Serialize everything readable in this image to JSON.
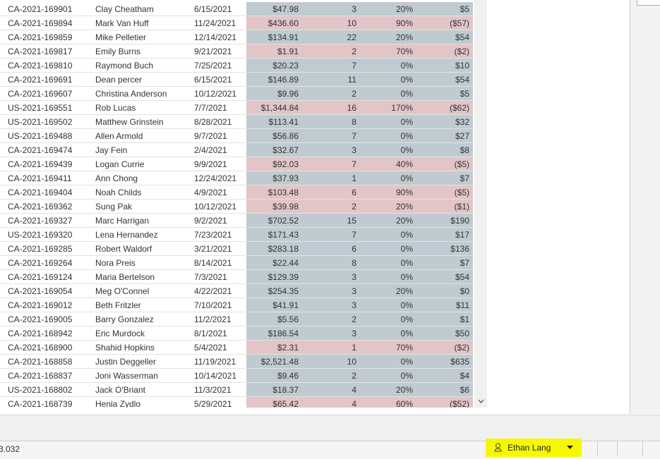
{
  "table": {
    "rows": [
      [
        "CA-2021-169901",
        "Clay Cheatham",
        "6/15/2021",
        "$47.98",
        "3",
        "20%",
        "$5"
      ],
      [
        "CA-2021-169894",
        "Mark Van Huff",
        "11/24/2021",
        "$436.60",
        "10",
        "90%",
        "($57)"
      ],
      [
        "CA-2021-169859",
        "Mike Pelletier",
        "12/14/2021",
        "$134.91",
        "22",
        "20%",
        "$54"
      ],
      [
        "CA-2021-169817",
        "Emily Burns",
        "9/21/2021",
        "$1.91",
        "2",
        "70%",
        "($2)"
      ],
      [
        "CA-2021-169810",
        "Raymond Buch",
        "7/25/2021",
        "$20.23",
        "7",
        "0%",
        "$10"
      ],
      [
        "CA-2021-169691",
        "Dean percer",
        "6/15/2021",
        "$146.89",
        "11",
        "0%",
        "$54"
      ],
      [
        "CA-2021-169607",
        "Christina Anderson",
        "10/12/2021",
        "$9.96",
        "2",
        "0%",
        "$5"
      ],
      [
        "US-2021-169551",
        "Rob Lucas",
        "7/7/2021",
        "$1,344.84",
        "16",
        "170%",
        "($62)"
      ],
      [
        "US-2021-169502",
        "Matthew Grinstein",
        "8/28/2021",
        "$113.41",
        "8",
        "0%",
        "$32"
      ],
      [
        "US-2021-169488",
        "Allen Armold",
        "9/7/2021",
        "$56.86",
        "7",
        "0%",
        "$27"
      ],
      [
        "CA-2021-169474",
        "Jay Fein",
        "2/4/2021",
        "$32.67",
        "3",
        "0%",
        "$8"
      ],
      [
        "CA-2021-169439",
        "Logan Currie",
        "9/9/2021",
        "$92.03",
        "7",
        "40%",
        "($5)"
      ],
      [
        "CA-2021-169411",
        "Ann Chong",
        "12/24/2021",
        "$37.93",
        "1",
        "0%",
        "$7"
      ],
      [
        "CA-2021-169404",
        "Noah Childs",
        "4/9/2021",
        "$103.48",
        "6",
        "90%",
        "($5)"
      ],
      [
        "CA-2021-169362",
        "Sung Pak",
        "10/12/2021",
        "$39.98",
        "2",
        "20%",
        "($1)"
      ],
      [
        "CA-2021-169327",
        "Marc Harrigan",
        "9/2/2021",
        "$702.52",
        "15",
        "20%",
        "$190"
      ],
      [
        "US-2021-169320",
        "Lena Hernandez",
        "7/23/2021",
        "$171.43",
        "7",
        "0%",
        "$17"
      ],
      [
        "CA-2021-169285",
        "Robert Waldorf",
        "3/21/2021",
        "$283.18",
        "6",
        "0%",
        "$136"
      ],
      [
        "CA-2021-169264",
        "Nora Preis",
        "8/14/2021",
        "$22.44",
        "8",
        "0%",
        "$7"
      ],
      [
        "CA-2021-169124",
        "Maria Bertelson",
        "7/3/2021",
        "$129.39",
        "3",
        "0%",
        "$54"
      ],
      [
        "CA-2021-169054",
        "Meg O'Connel",
        "4/22/2021",
        "$254.35",
        "3",
        "20%",
        "$0"
      ],
      [
        "CA-2021-169012",
        "Beth Fritzler",
        "7/10/2021",
        "$41.91",
        "3",
        "0%",
        "$11"
      ],
      [
        "CA-2021-169005",
        "Barry Gonzalez",
        "11/2/2021",
        "$5.56",
        "2",
        "0%",
        "$1"
      ],
      [
        "CA-2021-168942",
        "Eric Murdock",
        "8/1/2021",
        "$186.54",
        "3",
        "0%",
        "$50"
      ],
      [
        "CA-2021-168900",
        "Shahid Hopkins",
        "5/4/2021",
        "$2.31",
        "1",
        "70%",
        "($2)"
      ],
      [
        "CA-2021-168858",
        "Justin Deggeller",
        "11/19/2021",
        "$2,521.48",
        "10",
        "0%",
        "$635"
      ],
      [
        "CA-2021-168837",
        "Joni Wasserman",
        "10/14/2021",
        "$9.46",
        "2",
        "0%",
        "$4"
      ],
      [
        "US-2021-168802",
        "Jack O'Briant",
        "11/3/2021",
        "$18.37",
        "4",
        "20%",
        "$6"
      ],
      [
        "CA-2021-168739",
        "Henia Zydlo",
        "5/29/2021",
        "$65.42",
        "4",
        "60%",
        "($52)"
      ]
    ]
  },
  "status": {
    "count": "3.032",
    "user": "Ethan Lang"
  }
}
